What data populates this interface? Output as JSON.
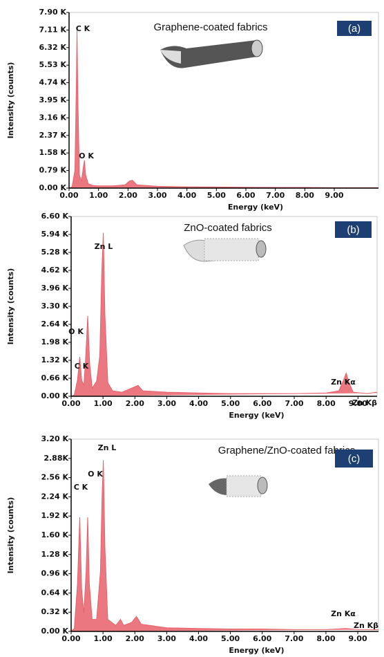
{
  "chart_data": [
    {
      "type": "area",
      "title": "Graphene-coated fabrics",
      "panel_label": "(a)",
      "x_label": "Energy (keV)",
      "y_label": "Intensity (counts)",
      "color": "#e8606a",
      "x": [
        0,
        0.1,
        0.2,
        0.25,
        0.27,
        0.3,
        0.35,
        0.42,
        0.48,
        0.52,
        0.56,
        0.65,
        0.8,
        1.0,
        1.5,
        1.9,
        2.05,
        2.15,
        2.3,
        3.0,
        4.0,
        5.0,
        6.0,
        7.0,
        8.0,
        9.0,
        10.0,
        10.5
      ],
      "values": [
        0,
        0.05,
        0.8,
        5.0,
        7.1,
        4.0,
        0.6,
        0.3,
        0.9,
        1.25,
        0.6,
        0.2,
        0.12,
        0.1,
        0.1,
        0.15,
        0.32,
        0.35,
        0.15,
        0.08,
        0.06,
        0.05,
        0.04,
        0.03,
        0.03,
        0.02,
        0.02,
        0.02
      ],
      "xlim": [
        0,
        10.5
      ],
      "ylim": [
        0,
        7.9
      ],
      "xticks": [
        {
          "value": 0,
          "label": "0.00"
        },
        {
          "value": 1,
          "label": "1.00"
        },
        {
          "value": 2,
          "label": "2.00"
        },
        {
          "value": 3,
          "label": "3.00"
        },
        {
          "value": 4,
          "label": "4.00"
        },
        {
          "value": 5,
          "label": "5.00"
        },
        {
          "value": 6,
          "label": "6.00"
        },
        {
          "value": 7,
          "label": "7.00"
        },
        {
          "value": 8,
          "label": "8.00"
        },
        {
          "value": 9,
          "label": "9.00"
        }
      ],
      "yticks": [
        {
          "value": 0,
          "label": "0.00 K"
        },
        {
          "value": 0.79,
          "label": "0.79 K"
        },
        {
          "value": 1.58,
          "label": "1.58 K"
        },
        {
          "value": 2.37,
          "label": "2.37 K"
        },
        {
          "value": 3.16,
          "label": "3.16 K"
        },
        {
          "value": 3.95,
          "label": "3.95 K"
        },
        {
          "value": 4.74,
          "label": "4.74 K"
        },
        {
          "value": 5.53,
          "label": "5.53 K"
        },
        {
          "value": 6.32,
          "label": "6.32 K"
        },
        {
          "value": 7.11,
          "label": "7.11 K"
        },
        {
          "value": 7.9,
          "label": "7.90 K"
        }
      ],
      "annotations": [
        "C K",
        "O K"
      ]
    },
    {
      "type": "area",
      "title": "ZnO-coated fabrics",
      "panel_label": "(b)",
      "x_label": "Energy (keV)",
      "y_label": "Intensity (counts)",
      "color": "#e8606a",
      "x": [
        0,
        0.1,
        0.2,
        0.27,
        0.33,
        0.4,
        0.46,
        0.52,
        0.58,
        0.66,
        0.8,
        0.9,
        0.96,
        1.01,
        1.06,
        1.15,
        1.3,
        1.6,
        2.0,
        2.1,
        2.25,
        3.0,
        4.0,
        5.0,
        6.0,
        7.0,
        8.0,
        8.4,
        8.55,
        8.63,
        8.72,
        8.85,
        9.3,
        9.57,
        9.6
      ],
      "values": [
        0,
        0.05,
        0.6,
        1.45,
        0.6,
        0.4,
        1.5,
        2.95,
        1.2,
        0.3,
        0.55,
        1.5,
        4.5,
        6.0,
        3.0,
        0.5,
        0.2,
        0.15,
        0.35,
        0.4,
        0.2,
        0.15,
        0.12,
        0.1,
        0.1,
        0.1,
        0.12,
        0.2,
        0.6,
        0.85,
        0.5,
        0.15,
        0.1,
        0.15,
        0.12
      ],
      "xlim": [
        0,
        9.6
      ],
      "ylim": [
        0,
        6.6
      ],
      "xticks": [
        {
          "value": 0,
          "label": "0.00"
        },
        {
          "value": 1,
          "label": "1.00"
        },
        {
          "value": 2,
          "label": "2.00"
        },
        {
          "value": 3,
          "label": "3.00"
        },
        {
          "value": 4,
          "label": "4.00"
        },
        {
          "value": 5,
          "label": "5.00"
        },
        {
          "value": 6,
          "label": "6.00"
        },
        {
          "value": 7,
          "label": "7.00"
        },
        {
          "value": 8,
          "label": "8.00"
        },
        {
          "value": 9,
          "label": "9.00"
        }
      ],
      "yticks": [
        {
          "value": 0,
          "label": "0.00 K"
        },
        {
          "value": 0.66,
          "label": "0.66 K"
        },
        {
          "value": 1.32,
          "label": "1.32 K"
        },
        {
          "value": 1.98,
          "label": "1.98 K"
        },
        {
          "value": 2.64,
          "label": "2.64 K"
        },
        {
          "value": 3.3,
          "label": "3.30 K"
        },
        {
          "value": 3.96,
          "label": "3.96 K"
        },
        {
          "value": 4.62,
          "label": "4.62 K"
        },
        {
          "value": 5.28,
          "label": "5.28 K"
        },
        {
          "value": 5.94,
          "label": "5.94 K"
        },
        {
          "value": 6.6,
          "label": "6.60 K"
        }
      ],
      "annotations": [
        "Zn L",
        "O K",
        "C K",
        "Zn Kα",
        "Zn Kβ"
      ]
    },
    {
      "type": "area",
      "title": "Graphene/ZnO-coated fabrics",
      "panel_label": "(c)",
      "x_label": "Energy (keV)",
      "y_label": "Intensity (counts)",
      "color": "#e8606a",
      "x": [
        0,
        0.1,
        0.2,
        0.27,
        0.33,
        0.4,
        0.47,
        0.52,
        0.57,
        0.66,
        0.8,
        0.92,
        0.97,
        1.01,
        1.06,
        1.15,
        1.4,
        1.55,
        1.65,
        1.9,
        2.05,
        2.2,
        3.0,
        4.0,
        5.0,
        6.0,
        7.0,
        8.0,
        8.63,
        9.0,
        9.65
      ],
      "values": [
        0,
        0.05,
        0.8,
        1.9,
        0.7,
        0.3,
        1.0,
        1.9,
        0.8,
        0.2,
        0.2,
        1.0,
        2.2,
        2.85,
        1.4,
        0.2,
        0.1,
        0.2,
        0.1,
        0.15,
        0.25,
        0.12,
        0.06,
        0.05,
        0.04,
        0.04,
        0.03,
        0.03,
        0.05,
        0.03,
        0.03
      ],
      "xlim": [
        0,
        9.65
      ],
      "ylim": [
        0,
        3.2
      ],
      "xticks": [
        {
          "value": 0,
          "label": "0.00"
        },
        {
          "value": 1,
          "label": "1.00"
        },
        {
          "value": 2,
          "label": "2.00"
        },
        {
          "value": 3,
          "label": "3.00"
        },
        {
          "value": 4,
          "label": "4.00"
        },
        {
          "value": 5,
          "label": "5.00"
        },
        {
          "value": 6,
          "label": "6.00"
        },
        {
          "value": 7,
          "label": "7.00"
        },
        {
          "value": 8,
          "label": "8.00"
        },
        {
          "value": 9,
          "label": "9.00"
        }
      ],
      "yticks": [
        {
          "value": 0,
          "label": "0.00 K"
        },
        {
          "value": 0.32,
          "label": "0.32 K"
        },
        {
          "value": 0.64,
          "label": "0.64 K"
        },
        {
          "value": 0.96,
          "label": "0.96 K"
        },
        {
          "value": 1.28,
          "label": "1.28 K"
        },
        {
          "value": 1.6,
          "label": "1.60 K"
        },
        {
          "value": 1.92,
          "label": "1.92 K"
        },
        {
          "value": 2.24,
          "label": "2.24 K"
        },
        {
          "value": 2.56,
          "label": "2.56 K"
        },
        {
          "value": 2.88,
          "label": "2.88K"
        },
        {
          "value": 3.2,
          "label": "3.20 K"
        }
      ],
      "annotations": [
        "Zn L",
        "O K",
        "C K",
        "Zn Kα",
        "Zn Kβ"
      ]
    }
  ]
}
